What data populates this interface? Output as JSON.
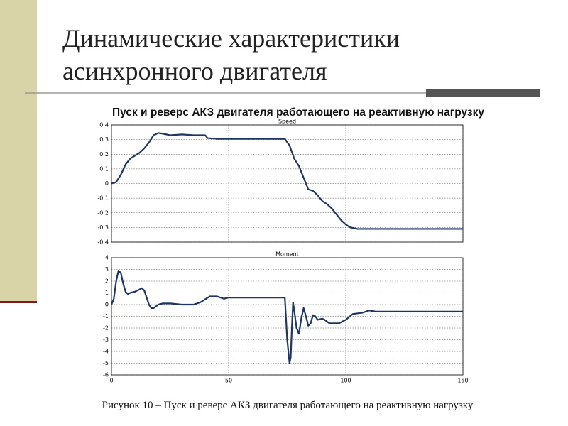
{
  "slide": {
    "title_line1": "Динамические характеристики",
    "title_line2": "асинхронного двигателя",
    "subtitle": "Пуск и реверс АКЗ двигателя работающего на реактивную нагрузку",
    "caption": "Рисунок 10 – Пуск и реверс АКЗ двигателя работающего на реактивную нагрузку"
  },
  "chart_data": [
    {
      "type": "line",
      "title": "Speed",
      "grid": true,
      "x": [
        0,
        2,
        4,
        6,
        8,
        10,
        12,
        14,
        16,
        18,
        20,
        22,
        25,
        30,
        35,
        40,
        41,
        45,
        50,
        60,
        70,
        74,
        76,
        78,
        80,
        82,
        84,
        86,
        88,
        90,
        92,
        94,
        96,
        98,
        100,
        102,
        105,
        110,
        150
      ],
      "series": [
        {
          "name": "Speed",
          "color": "#1f3566",
          "values": [
            0,
            0.01,
            0.06,
            0.13,
            0.17,
            0.19,
            0.21,
            0.24,
            0.28,
            0.33,
            0.345,
            0.34,
            0.33,
            0.335,
            0.33,
            0.33,
            0.31,
            0.305,
            0.305,
            0.305,
            0.305,
            0.305,
            0.26,
            0.17,
            0.12,
            0.04,
            -0.04,
            -0.05,
            -0.08,
            -0.12,
            -0.14,
            -0.17,
            -0.21,
            -0.25,
            -0.28,
            -0.3,
            -0.31,
            -0.31,
            -0.31
          ]
        }
      ],
      "xlim": [
        0,
        150
      ],
      "xticks": [
        0,
        50,
        100,
        150
      ],
      "ylim": [
        -0.4,
        0.4
      ],
      "yticks": [
        -0.4,
        -0.3,
        -0.2,
        -0.1,
        0,
        0.1,
        0.2,
        0.3,
        0.4
      ]
    },
    {
      "type": "line",
      "title": "Moment",
      "grid": true,
      "x": [
        0,
        1,
        2,
        3,
        4,
        5,
        6,
        7,
        8,
        10,
        12,
        13,
        14,
        15,
        16,
        17,
        18,
        20,
        22,
        25,
        30,
        35,
        38,
        42,
        45,
        48,
        50,
        55,
        60,
        65,
        70,
        74,
        75,
        76,
        76.5,
        77,
        77.5,
        78,
        79,
        80,
        81,
        82,
        83,
        84,
        85,
        86,
        87,
        88,
        90,
        91,
        93,
        97,
        100,
        103,
        107,
        110,
        113,
        150
      ],
      "series": [
        {
          "name": "Moment",
          "color": "#1f3566",
          "values": [
            0,
            0.5,
            2,
            2.9,
            2.7,
            1.8,
            1.1,
            0.9,
            1,
            1.1,
            1.3,
            1.4,
            1.2,
            0.6,
            0,
            -0.3,
            -0.3,
            0,
            0.1,
            0.1,
            0,
            0,
            0.2,
            0.7,
            0.7,
            0.5,
            0.6,
            0.6,
            0.6,
            0.6,
            0.6,
            0.6,
            -3,
            -5,
            -4.5,
            -2,
            0.2,
            -0.5,
            -2,
            -2.5,
            -1.2,
            -0.3,
            -1,
            -1.8,
            -1.6,
            -0.9,
            -1,
            -1.3,
            -1.2,
            -1.3,
            -1.6,
            -1.6,
            -1.3,
            -0.8,
            -0.7,
            -0.5,
            -0.6,
            -0.6
          ]
        }
      ],
      "xlim": [
        0,
        150
      ],
      "xticks": [
        0,
        50,
        100,
        150
      ],
      "ylim": [
        -6,
        4
      ],
      "yticks": [
        -6,
        -5,
        -4,
        -3,
        -2,
        -1,
        0,
        1,
        2,
        3,
        4
      ]
    }
  ]
}
